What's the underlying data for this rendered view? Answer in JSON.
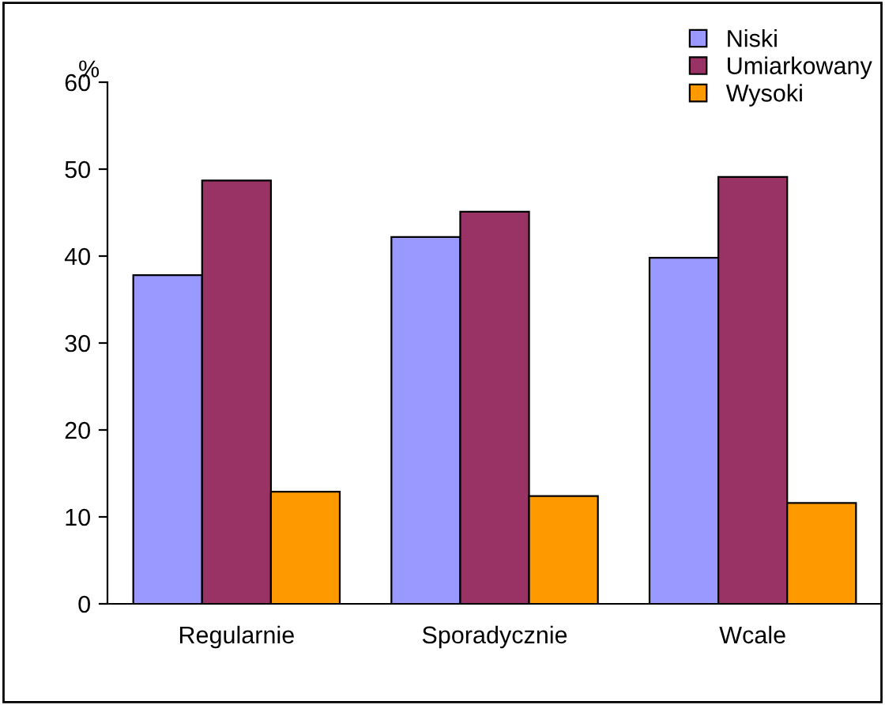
{
  "chart_data": {
    "type": "bar",
    "ylabel": "%",
    "categories": [
      "Regularnie",
      "Sporadycznie",
      "Wcale"
    ],
    "series": [
      {
        "name": "Niski",
        "color": "#9999ff",
        "values": [
          37.8,
          42.2,
          39.8
        ]
      },
      {
        "name": "Umiarkowany",
        "color": "#993366",
        "values": [
          48.7,
          45.1,
          49.1
        ]
      },
      {
        "name": "Wysoki",
        "color": "#ff9900",
        "values": [
          12.9,
          12.4,
          11.6
        ]
      }
    ],
    "ylim": [
      0,
      60
    ],
    "yticks": [
      0,
      10,
      20,
      30,
      40,
      50,
      60
    ],
    "grid": false,
    "legend": "top right"
  }
}
